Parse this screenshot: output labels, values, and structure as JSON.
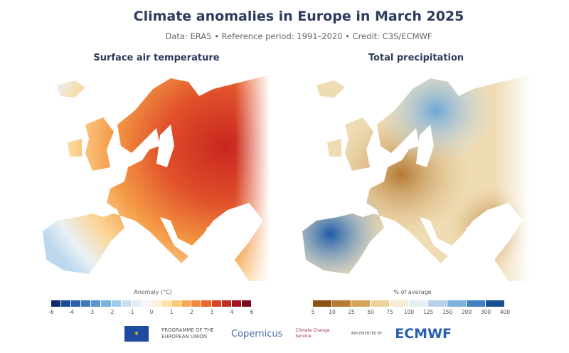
{
  "title": "Climate anomalies in Europe in March 2025",
  "subtitle": "Data: ERA5 • Reference period: 1991–2020 • Credit: C3S/ECMWF",
  "panels": [
    {
      "title": "Surface air temperature",
      "legend_label": "Anomaly (°C)",
      "ticks": [
        "-6",
        "-4",
        "-3",
        "-2",
        "-1",
        "0",
        "1",
        "2",
        "3",
        "4",
        "6"
      ],
      "colors": [
        "#0d2a6b",
        "#1c4a94",
        "#2a62ad",
        "#3d7bc0",
        "#5a96cf",
        "#7cb1dd",
        "#a2cbe8",
        "#c6e0f1",
        "#e2eef6",
        "#f7f7f7",
        "#fbf1d8",
        "#fde2a6",
        "#fdc877",
        "#f9a84f",
        "#f3873a",
        "#e8652c",
        "#d84424",
        "#c22a22",
        "#a5141f",
        "#7c0a1a"
      ]
    },
    {
      "title": "Total precipitation",
      "legend_label": "% of average",
      "ticks": [
        "5",
        "10",
        "25",
        "50",
        "75",
        "100",
        "125",
        "150",
        "200",
        "300",
        "400"
      ],
      "colors": [
        "#8b5212",
        "#b77a2e",
        "#d3a55a",
        "#ecd39b",
        "#f6ecd2",
        "#e6eef5",
        "#b7d2ea",
        "#7eb1dc",
        "#3f82c2",
        "#1a4f92"
      ]
    }
  ],
  "logos": {
    "eu": "PROGRAMME OF THE EUROPEAN UNION",
    "copernicus": "Copernicus",
    "c3s": "Climate Change Service",
    "implemented_by": "IMPLEMENTED BY",
    "ecmwf": "ECMWF"
  }
}
